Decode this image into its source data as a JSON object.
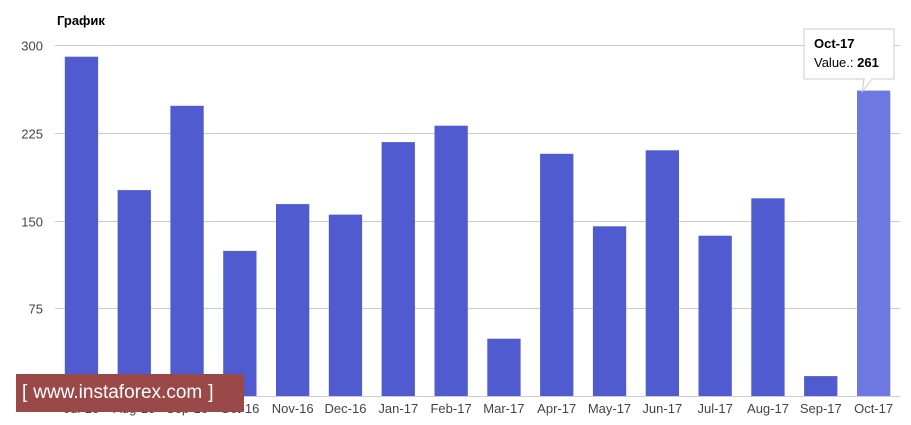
{
  "chart_data": {
    "type": "bar",
    "title": "График",
    "categories": [
      "Jul-16",
      "Aug-16",
      "Sep-16",
      "Oct-16",
      "Nov-16",
      "Dec-16",
      "Jan-17",
      "Feb-17",
      "Mar-17",
      "Apr-17",
      "May-17",
      "Jun-17",
      "Jul-17",
      "Aug-17",
      "Sep-17",
      "Oct-17"
    ],
    "values": [
      290,
      176,
      248,
      124,
      164,
      155,
      217,
      231,
      49,
      207,
      145,
      210,
      137,
      169,
      17,
      261
    ],
    "ylim": [
      0,
      300
    ],
    "yticks": [
      0,
      75,
      150,
      225,
      300
    ],
    "grid": true,
    "bar_color": "#4f5bcf",
    "highlight_color": "#6d79e0",
    "xlabel": "",
    "ylabel": ""
  },
  "tooltip": {
    "category": "Oct-17",
    "value_label": "Value.:",
    "value": "261"
  },
  "watermark": {
    "open": "[",
    "text": "www.instaforex.com",
    "close": "]"
  }
}
